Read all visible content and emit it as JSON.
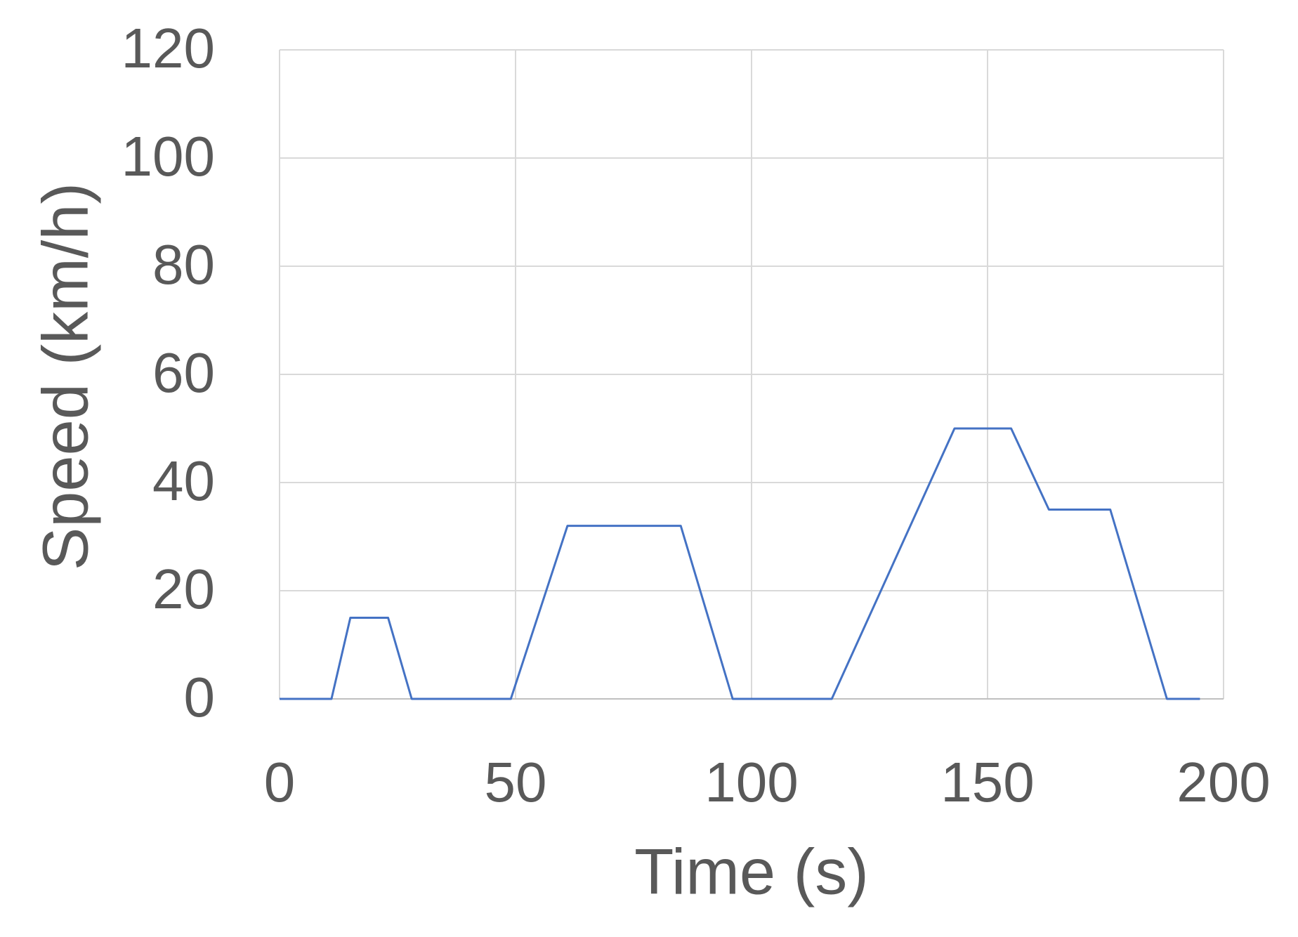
{
  "chart_data": {
    "type": "line",
    "x_label": "Time (s)",
    "y_label": "Speed (km/h)",
    "series": [
      {
        "name": "Speed",
        "color": "#4472c4",
        "x": [
          0,
          11,
          15,
          23,
          28,
          49,
          61,
          85,
          96,
          117,
          143,
          155,
          163,
          176,
          188,
          195
        ],
        "values": [
          0,
          0,
          15,
          15,
          0,
          0,
          32,
          32,
          0,
          0,
          50,
          50,
          35,
          35,
          0,
          0
        ]
      }
    ],
    "xlim": [
      0,
      200
    ],
    "xticks": [
      0,
      50,
      100,
      150,
      200
    ],
    "ylim": [
      0,
      120
    ],
    "yticks": [
      0,
      20,
      40,
      60,
      80,
      100,
      120
    ],
    "grid": true
  }
}
